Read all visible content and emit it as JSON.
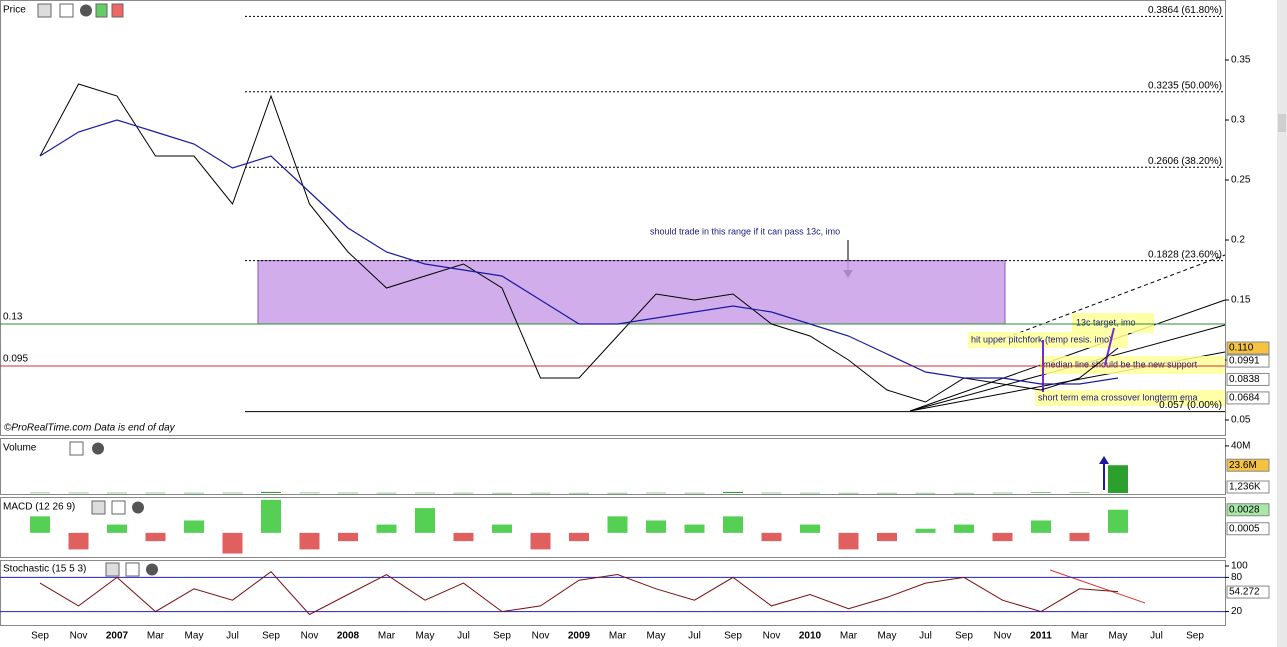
{
  "chart_data": [
    {
      "type": "line",
      "title": "Price",
      "categories": [
        "Sep",
        "Nov",
        "2007",
        "Mar",
        "May",
        "Jul",
        "Sep",
        "Nov",
        "2008",
        "Mar",
        "May",
        "Jul",
        "Sep",
        "Nov",
        "2009",
        "Mar",
        "May",
        "Jul",
        "Sep",
        "Nov",
        "2010",
        "Mar",
        "May",
        "Jul",
        "Sep",
        "Nov",
        "2011",
        "Mar",
        "May",
        "Jul",
        "Sep"
      ],
      "series": [
        {
          "color": "#000000",
          "values": [
            0.27,
            0.33,
            0.32,
            0.27,
            0.27,
            0.23,
            0.32,
            0.23,
            0.19,
            0.16,
            0.17,
            0.18,
            0.16,
            0.085,
            0.085,
            0.12,
            0.155,
            0.15,
            0.155,
            0.13,
            0.12,
            0.1,
            0.075,
            0.065,
            0.085,
            0.08,
            0.075,
            0.085,
            0.11,
            null,
            null
          ]
        },
        {
          "color": "#1a1aa0",
          "values": [
            0.27,
            0.29,
            0.3,
            0.29,
            0.28,
            0.26,
            0.27,
            0.24,
            0.21,
            0.19,
            0.18,
            0.175,
            0.17,
            0.15,
            0.13,
            0.13,
            0.135,
            0.14,
            0.145,
            0.14,
            0.13,
            0.12,
            0.105,
            0.09,
            0.085,
            0.085,
            0.08,
            0.08,
            0.085,
            null,
            null
          ]
        }
      ],
      "ylim": [
        0.04,
        0.4
      ],
      "yticks": [
        0.05,
        0.1,
        0.15,
        0.2,
        0.25,
        0.3,
        0.35
      ],
      "levels": [
        {
          "value": 0.3864,
          "label": "0.3864 (61.80%)"
        },
        {
          "value": 0.3235,
          "label": "0.3235 (50.00%)"
        },
        {
          "value": 0.2606,
          "label": "0.2606 (38.20%)"
        },
        {
          "value": 0.1828,
          "label": "0.1828 (23.60%)"
        },
        {
          "value": 0.057,
          "label": "0.057 (0.00%)"
        }
      ],
      "hlines": [
        {
          "value": 0.13,
          "color": "#2e8b2e"
        },
        {
          "value": 0.095,
          "color": "#d03030"
        }
      ],
      "range_box": [
        0.13,
        0.1828
      ],
      "markers": [
        {
          "value": 0.11,
          "label": "0.110",
          "color": "#f5c242"
        },
        {
          "value": 0.0991,
          "label": "0.0991",
          "color": "#ffffff"
        },
        {
          "value": 0.0838,
          "label": "0.0838",
          "color": "#ffffff"
        },
        {
          "value": 0.0684,
          "label": "0.0684",
          "color": "#ffffff"
        }
      ],
      "annotations": [
        "should trade in this range if it can pass 13c, imo",
        "13c target, imo",
        "hit upper pitchfork (temp resis. imo)",
        "median line should be the new support",
        "short term ema crossover longterm ema",
        "©ProRealTime.com  Data is end of day"
      ]
    },
    {
      "type": "bar",
      "title": "Volume",
      "color": "#2ca02c",
      "values": [
        300000,
        250000,
        200000,
        200000,
        150000,
        200000,
        900000,
        300000,
        200000,
        150000,
        200000,
        150000,
        100000,
        150000,
        100000,
        100000,
        200000,
        150000,
        900000,
        200000,
        150000,
        100000,
        100000,
        100000,
        100000,
        200000,
        500000,
        400000,
        23600000,
        null,
        null
      ],
      "ylim": [
        0,
        45000000
      ],
      "yticks": [
        {
          "value": 40000000,
          "label": "40M"
        }
      ],
      "markers": [
        {
          "value": 23600000,
          "label": "23.6M",
          "color": "#f5c242"
        },
        {
          "value": 1236000,
          "label": "1,236K",
          "color": "#ffffff"
        }
      ]
    },
    {
      "type": "bar",
      "title": "MACD (12 26 9)",
      "pos_color": "#55d055",
      "neg_color": "#e06060",
      "values": [
        0.002,
        -0.002,
        0.001,
        -0.001,
        0.0015,
        -0.0025,
        0.004,
        -0.002,
        -0.001,
        0.001,
        0.003,
        -0.001,
        0.001,
        -0.002,
        -0.001,
        0.002,
        0.0015,
        0.001,
        0.002,
        -0.001,
        0.001,
        -0.002,
        -0.001,
        0.0005,
        0.001,
        -0.001,
        0.0015,
        -0.001,
        0.0028,
        null,
        null
      ],
      "ylim": [
        -0.0028,
        0.0041
      ],
      "markers": [
        {
          "value": 0.0028,
          "label": "0.0028",
          "color": "#a8e8a8"
        },
        {
          "value": 0.0005,
          "label": "0.0005",
          "color": "#ffffff"
        }
      ]
    },
    {
      "type": "line",
      "title": "Stochastic (15 5 3)",
      "color": "#7a1010",
      "values": [
        70,
        30,
        80,
        20,
        60,
        40,
        90,
        15,
        50,
        85,
        40,
        70,
        20,
        30,
        75,
        85,
        60,
        40,
        80,
        30,
        50,
        25,
        45,
        70,
        80,
        40,
        20,
        60,
        55,
        null,
        null
      ],
      "ylim": [
        0,
        100
      ],
      "yticks": [
        20,
        80,
        100
      ],
      "bands": [
        20,
        80
      ],
      "markers": [
        {
          "value": 54.272,
          "label": "54.272",
          "color": "#ffffff"
        }
      ]
    }
  ]
}
